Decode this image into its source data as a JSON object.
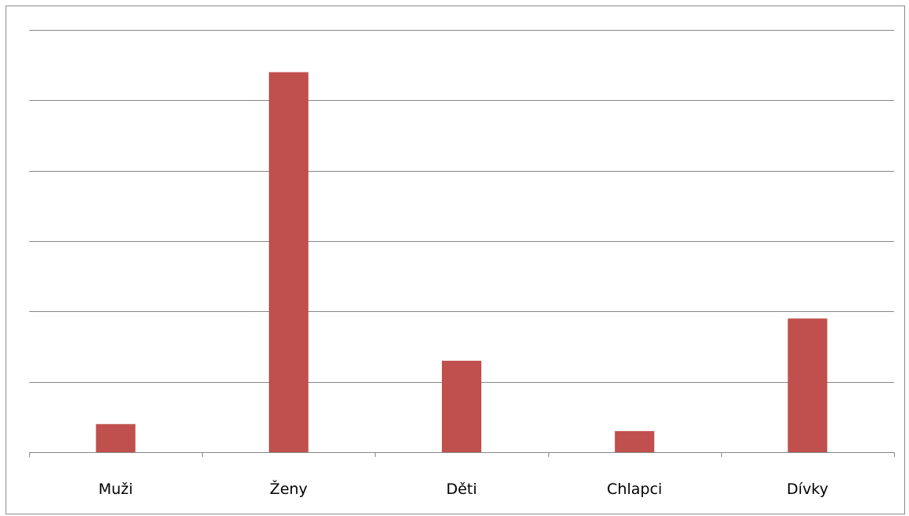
{
  "chart_data": {
    "type": "bar",
    "title": "",
    "xlabel": "",
    "ylabel": "",
    "categories": [
      "Muži",
      "Ženy",
      "Děti",
      "Chlapci",
      "Dívky"
    ],
    "values": [
      2,
      27,
      6.5,
      1.5,
      9.5
    ],
    "ylim": [
      0,
      30
    ],
    "y_gridline_step": 5,
    "y_tick_labels_shown": false,
    "grid": true,
    "legend": "none",
    "colors": {
      "bar": "#c0504d",
      "gridline": "#878787",
      "axis": "#878787",
      "text": "#000000",
      "frame": "#8c8c8c"
    }
  }
}
